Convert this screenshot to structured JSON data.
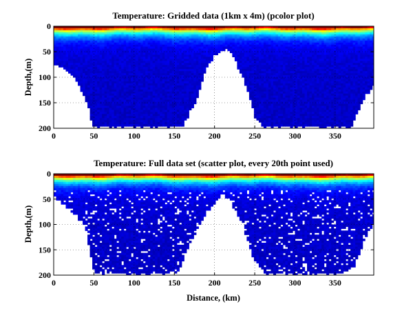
{
  "chart_data": [
    {
      "type": "heatmap",
      "title": "Temperature: Gridded data (1km x 4m) (pcolor plot)",
      "xlabel": "",
      "ylabel": "Depth,(m)",
      "xlim": [
        0,
        398
      ],
      "ylim": [
        200,
        0
      ],
      "y_reversed": true,
      "xticks": [
        0,
        50,
        100,
        150,
        200,
        250,
        300,
        350
      ],
      "yticks": [
        0,
        50,
        100,
        150,
        200
      ],
      "grid": true,
      "colormap": "jet",
      "colormap_colors": [
        "#00008f",
        "#0000ff",
        "#0080ff",
        "#00ffff",
        "#80ff80",
        "#ffff00",
        "#ff8000",
        "#ff0000",
        "#800000"
      ],
      "seafloor_profile": {
        "distance_km": [
          0,
          10,
          20,
          30,
          40,
          45,
          50,
          60,
          80,
          100,
          120,
          140,
          160,
          175,
          190,
          200,
          210,
          215,
          225,
          240,
          250,
          260,
          265,
          280,
          300,
          320,
          340,
          360,
          370,
          380,
          390,
          398
        ],
        "depth_m": [
          70,
          80,
          90,
          110,
          140,
          170,
          195,
          195,
          195,
          195,
          195,
          195,
          195,
          150,
          80,
          55,
          45,
          40,
          60,
          120,
          175,
          195,
          195,
          195,
          195,
          195,
          195,
          195,
          195,
          160,
          130,
          115
        ]
      }
    },
    {
      "type": "scatter",
      "title": "Temperature: Full data set (scatter plot, every 20th point used)",
      "xlabel": "Distance, (km)",
      "ylabel": "Depth,(m)",
      "xlim": [
        0,
        398
      ],
      "ylim": [
        200,
        0
      ],
      "y_reversed": true,
      "xticks": [
        0,
        50,
        100,
        150,
        200,
        250,
        300,
        350
      ],
      "yticks": [
        0,
        50,
        100,
        150,
        200
      ],
      "grid": true,
      "colormap": "jet",
      "colormap_colors": [
        "#00008f",
        "#0000ff",
        "#0080ff",
        "#00ffff",
        "#80ff80",
        "#ffff00",
        "#ff8000",
        "#ff0000",
        "#800000"
      ],
      "seafloor_profile": {
        "distance_km": [
          0,
          10,
          20,
          30,
          40,
          45,
          50,
          60,
          80,
          100,
          120,
          140,
          155,
          165,
          180,
          195,
          205,
          212,
          220,
          235,
          250,
          260,
          265,
          280,
          300,
          320,
          340,
          360,
          375,
          385,
          392,
          398
        ],
        "depth_m": [
          40,
          55,
          70,
          85,
          105,
          150,
          190,
          195,
          195,
          195,
          195,
          195,
          190,
          150,
          100,
          65,
          45,
          40,
          50,
          100,
          170,
          190,
          195,
          195,
          195,
          195,
          195,
          195,
          180,
          130,
          110,
          95
        ]
      }
    }
  ]
}
